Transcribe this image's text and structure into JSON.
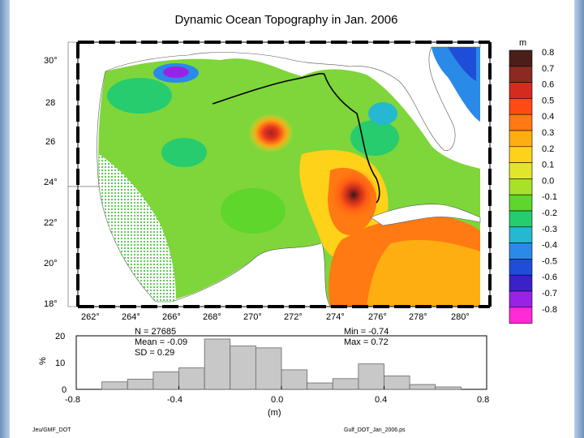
{
  "title": "Dynamic Ocean Topography in Jan. 2006",
  "colorbar": {
    "unit": "m",
    "ticks": [
      "0.8",
      "0.7",
      "0.6",
      "0.5",
      "0.4",
      "0.3",
      "0.2",
      "0.1",
      "0.0",
      "-0.1",
      "-0.2",
      "-0.3",
      "-0.4",
      "-0.5",
      "-0.6",
      "-0.7",
      "-0.8"
    ],
    "colors": [
      "#4a1f1a",
      "#8b2a22",
      "#d42b1e",
      "#ff4a14",
      "#ff7a12",
      "#ffae12",
      "#ffd21a",
      "#e2e62a",
      "#a8e02a",
      "#5ed62c",
      "#26cc6e",
      "#26b8d0",
      "#2a8ae8",
      "#1e4ed8",
      "#3a22c8",
      "#9a22e8",
      "#ff2ad8"
    ]
  },
  "map": {
    "lon_ticks": [
      "262°",
      "264°",
      "266°",
      "268°",
      "270°",
      "272°",
      "274°",
      "276°",
      "278°",
      "280°"
    ],
    "lat_ticks": [
      "30°",
      "28",
      "26",
      "24°",
      "22°",
      "20°",
      "18°"
    ]
  },
  "stats": {
    "n": "N =  27685",
    "mean": "Mean = -0.09",
    "sd": "SD = 0.29",
    "min": "Min = -0.74",
    "max": "Max =  0.72"
  },
  "footer": {
    "left": "Jeu/GMF_DOT",
    "right": "Gulf_DOT_Jan_2006.ps"
  },
  "chart_data": {
    "type": "bar",
    "title": "",
    "xlabel": "(m)",
    "ylabel": "%",
    "xlim": [
      -0.8,
      0.8
    ],
    "ylim": [
      0,
      20
    ],
    "x_ticks": [
      "-0.8",
      "-0.4",
      "0.0",
      "0.4",
      "0.8"
    ],
    "y_ticks": [
      "20",
      "10",
      "0"
    ],
    "bin_width": 0.1,
    "bin_left_edges": [
      -0.7,
      -0.6,
      -0.5,
      -0.4,
      -0.3,
      -0.2,
      -0.1,
      0.0,
      0.1,
      0.2,
      0.3,
      0.4,
      0.5,
      0.6
    ],
    "values": [
      2.8,
      3.8,
      6.5,
      8.0,
      18.8,
      16.2,
      15.5,
      7.3,
      2.4,
      4.0,
      9.5,
      5.0,
      1.8,
      0.9
    ]
  }
}
